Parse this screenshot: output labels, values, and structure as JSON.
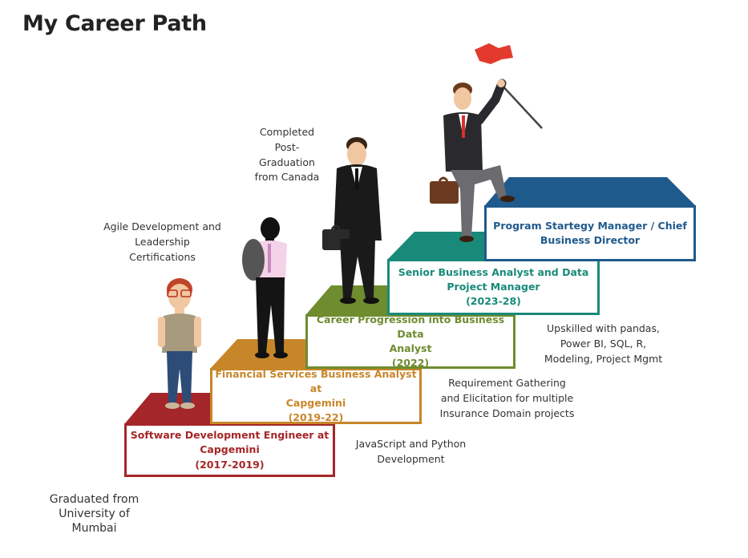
{
  "page_title": "My Career Path",
  "colors": {
    "step1": "#a52628",
    "step2": "#c8862a",
    "step3": "#6f8c2f",
    "step4": "#198a7a",
    "step5": "#1f5a8c"
  },
  "steps": [
    {
      "title_line1": "Software Development Engineer at",
      "title_line2": "Capgemini",
      "period": "(2017-2019)"
    },
    {
      "title_line1": "Financial Services Business Analyst at",
      "title_line2": "Capgemini",
      "period": "(2019-22)"
    },
    {
      "title_line1": "Career Progression into Business Data",
      "title_line2": "Analyst",
      "period": "(2022)"
    },
    {
      "title_line1": "Senior Business Analyst and Data",
      "title_line2": "Project Manager",
      "period": "(2023-28)"
    },
    {
      "title_line1": "Program Startegy Manager / Chief",
      "title_line2": "Business Director",
      "period": ""
    }
  ],
  "annotations": {
    "graduated": [
      "Graduated from",
      "University of",
      "Mumbai"
    ],
    "agile": [
      "Agile Development and",
      "Leadership",
      "Certifications"
    ],
    "postgrad": [
      "Completed",
      "Post-",
      "Graduation",
      "from Canada"
    ],
    "javascript": [
      "JavaScript and Python",
      "Development"
    ],
    "requirement": [
      "Requirement Gathering",
      "and Elicitation for multiple",
      "Insurance Domain projects"
    ],
    "upskilled": [
      "Upskilled with pandas,",
      "Power BI, SQL, R,",
      "Modeling, Project Mgmt"
    ]
  }
}
